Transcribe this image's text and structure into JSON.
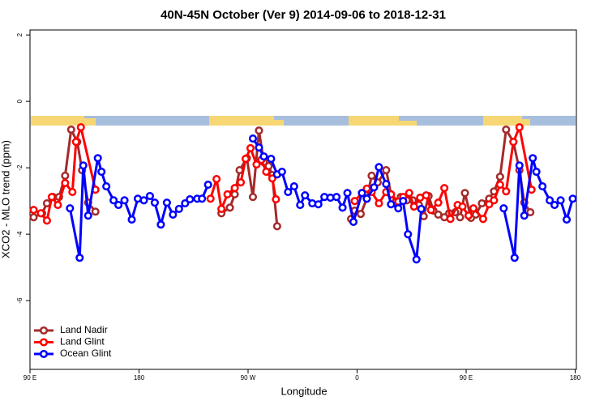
{
  "chart_data": {
    "type": "line",
    "title": "40N-45N October (Ver 9)   2014-09-06 to 2018-12-31",
    "xlabel": "Longitude",
    "ylabel": "XCO2 - MLO trend (ppm)",
    "xlim": [
      90,
      541
    ],
    "ylim": [
      -8.07,
      2.15
    ],
    "xticks": [
      {
        "value": 90,
        "label": "90 E"
      },
      180,
      {
        "value": 270,
        "label": "90 W"
      },
      {
        "value": 360,
        "label": "0"
      },
      {
        "value": 450,
        "label": "90 E"
      },
      {
        "value": 540,
        "label": "180"
      }
    ],
    "yticks": [
      2,
      0,
      -2,
      -4,
      -6
    ],
    "legend": "bottomleft",
    "series": [
      {
        "name": "Land Nadir",
        "color": "#a52a2a",
        "x": [
          93,
          100,
          104,
          109,
          114,
          119,
          124,
          129,
          133,
          138,
          144,
          200,
          248,
          255,
          259,
          263,
          269,
          274,
          279,
          283,
          287,
          290,
          294,
          320,
          355,
          358,
          363,
          368,
          372,
          377,
          384,
          388,
          392,
          396,
          401,
          406,
          411,
          415,
          419,
          423,
          427,
          432,
          436,
          441,
          445,
          449,
          454,
          458,
          463,
          469,
          473,
          478,
          483,
          489,
          494,
          498,
          503
        ],
        "values": [
          -3.49,
          -3.37,
          -3.07,
          -2.88,
          -2.88,
          -2.24,
          -0.85,
          -1.22,
          -2.07,
          -3.05,
          -3.32,
          null,
          -3.37,
          -3.2,
          -2.8,
          -2.07,
          -1.71,
          -2.88,
          -0.88,
          -1.83,
          -1.95,
          -2.22,
          -3.76,
          null,
          -3.54,
          -3.29,
          -3.39,
          -2.93,
          -2.24,
          -2.44,
          -2.07,
          -2.8,
          -3.02,
          -2.88,
          -2.98,
          -2.98,
          -3.12,
          -3.46,
          -2.85,
          -3.29,
          -3.41,
          -3.49,
          -3.37,
          -3.34,
          -3.49,
          -2.76,
          -3.51,
          -3.41,
          -3.07,
          -2.93,
          -2.71,
          -2.27,
          -0.85,
          -1.22,
          -2.07,
          -3.05,
          -3.34
        ]
      },
      {
        "name": "Land Glint",
        "color": "#ff0000",
        "x": [
          93,
          99,
          104,
          108,
          113,
          119,
          125,
          128,
          132,
          144,
          200,
          239,
          244,
          248,
          253,
          259,
          264,
          268,
          272,
          277,
          281,
          285,
          290,
          293,
          320,
          358,
          364,
          368,
          372,
          378,
          384,
          388,
          394,
          398,
          403,
          407,
          412,
          417,
          421,
          427,
          432,
          437,
          443,
          447,
          452,
          456,
          464,
          469,
          473,
          478,
          483,
          489,
          494,
          504
        ],
        "values": [
          -3.27,
          -3.37,
          -3.59,
          -2.88,
          -3.12,
          -2.46,
          -2.73,
          -1.22,
          -0.78,
          -2.66,
          null,
          -2.93,
          -2.34,
          -3.24,
          -2.8,
          -2.61,
          -2.44,
          -1.73,
          -1.41,
          -1.9,
          -1.76,
          -2.12,
          -2.32,
          -2.95,
          null,
          -3,
          -2.76,
          -2.63,
          -2.73,
          -3.07,
          -2.73,
          -2.8,
          -3.02,
          -2.88,
          -2.76,
          -3.17,
          -2.9,
          -2.83,
          -3.27,
          -3.05,
          -2.61,
          -3.54,
          -3.12,
          -3.17,
          -3.44,
          -3.22,
          -3.54,
          -3.1,
          -2.98,
          -2.51,
          -2.71,
          -1.22,
          -0.78,
          -2.66
        ]
      },
      {
        "name": "Ocean Glint",
        "color": "#0000ff",
        "x": [
          123,
          131,
          134,
          138,
          146,
          149,
          153,
          159,
          163,
          168,
          174,
          179,
          184,
          189,
          193,
          198,
          203,
          208,
          213,
          218,
          222,
          228,
          232,
          237,
          250,
          274,
          279,
          283,
          289,
          294,
          298,
          303,
          308,
          313,
          317,
          323,
          328,
          333,
          338,
          343,
          348,
          352,
          357,
          364,
          368,
          374,
          378,
          384,
          388,
          394,
          398,
          402,
          409,
          413,
          460,
          481,
          490,
          494,
          498,
          505,
          508,
          513,
          519,
          523,
          528,
          533,
          538
        ],
        "values": [
          -3.22,
          -4.71,
          -1.93,
          -3.44,
          -1.71,
          -2.12,
          -2.56,
          -2.98,
          -3.12,
          -2.98,
          -3.56,
          -2.93,
          -2.98,
          -2.85,
          -3.05,
          -3.71,
          -3.05,
          -3.41,
          -3.24,
          -3.07,
          -2.95,
          -2.93,
          -2.93,
          -2.51,
          null,
          -1.12,
          -1.39,
          -1.66,
          -1.73,
          -2.2,
          -2.12,
          -2.73,
          -2.56,
          -3.12,
          -2.83,
          -3.07,
          -3.1,
          -2.88,
          -2.9,
          -2.88,
          -3.2,
          -2.76,
          -3.63,
          -2.76,
          -2.93,
          -2.59,
          -1.98,
          -2.49,
          -3.1,
          -3.22,
          -3,
          -4,
          -4.76,
          -3.24,
          null,
          -3.22,
          -4.71,
          -1.93,
          -3.44,
          -1.71,
          -2.12,
          -2.56,
          -2.98,
          -3.12,
          -2.98,
          -3.56,
          -2.93
        ]
      }
    ]
  }
}
